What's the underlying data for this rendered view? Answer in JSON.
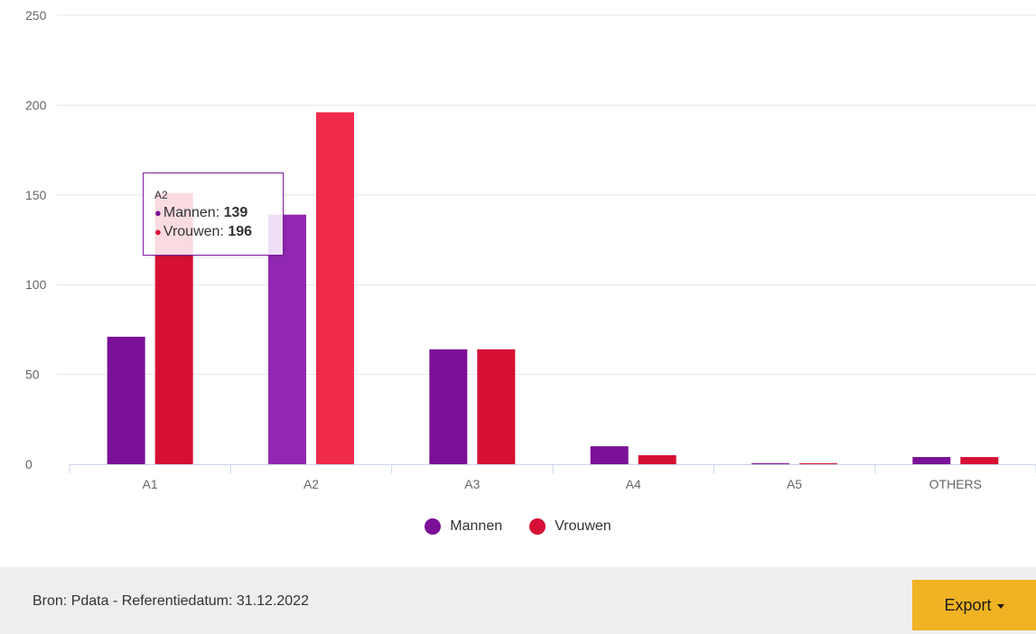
{
  "chart_data": {
    "type": "bar",
    "categories": [
      "A1",
      "A2",
      "A3",
      "A4",
      "A5",
      "OTHERS"
    ],
    "series": [
      {
        "name": "Mannen",
        "color": "#7b1198",
        "hover_color": "#9228b2",
        "values": [
          71,
          139,
          64,
          10,
          0.5,
          4
        ]
      },
      {
        "name": "Vrouwen",
        "color": "#d60f35",
        "hover_color": "#f02a4b",
        "values": [
          151,
          196,
          64,
          5,
          0.5,
          4
        ]
      }
    ],
    "ylim": [
      0,
      250
    ],
    "yticks": [
      0,
      50,
      100,
      150,
      200,
      250
    ],
    "grid": true,
    "legend": "bottom-center",
    "highlighted_category": "A2"
  },
  "tooltip": {
    "title": "A2",
    "rows": [
      {
        "label": "Mannen: ",
        "value": "139",
        "color": "#7b1198"
      },
      {
        "label": "Vrouwen: ",
        "value": "196",
        "color": "#d60f35"
      }
    ]
  },
  "footer": {
    "source_text": "Bron: Pdata - Referentiedatum: 31.12.2022",
    "export_label": "Export",
    "export_icon": "caret-down-icon"
  }
}
